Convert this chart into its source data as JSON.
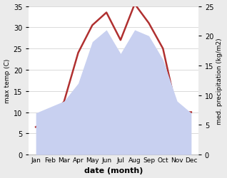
{
  "months": [
    "Jan",
    "Feb",
    "Mar",
    "Apr",
    "May",
    "Jun",
    "Jul",
    "Aug",
    "Sep",
    "Oct",
    "Nov",
    "Dec"
  ],
  "temp": [
    6.5,
    8.5,
    12.5,
    24,
    30.5,
    33.5,
    27,
    35.5,
    31,
    25,
    10,
    10
  ],
  "precip": [
    7,
    8,
    9,
    12,
    19,
    21,
    17,
    21,
    20,
    16,
    9,
    7
  ],
  "temp_color": "#b03030",
  "precip_fill_color": "#c8d0f0",
  "precip_fill_edge": "#c8d0f0",
  "left_ylim": [
    0,
    35
  ],
  "right_ylim": [
    0,
    25
  ],
  "left_yticks": [
    0,
    5,
    10,
    15,
    20,
    25,
    30,
    35
  ],
  "right_yticks": [
    0,
    5,
    10,
    15,
    20,
    25
  ],
  "xlabel": "date (month)",
  "ylabel_left": "max temp (C)",
  "ylabel_right": "med. precipitation (kg/m2)",
  "bg_color": "#ebebeb",
  "plot_bg": "#ffffff",
  "grid_color": "#cccccc"
}
